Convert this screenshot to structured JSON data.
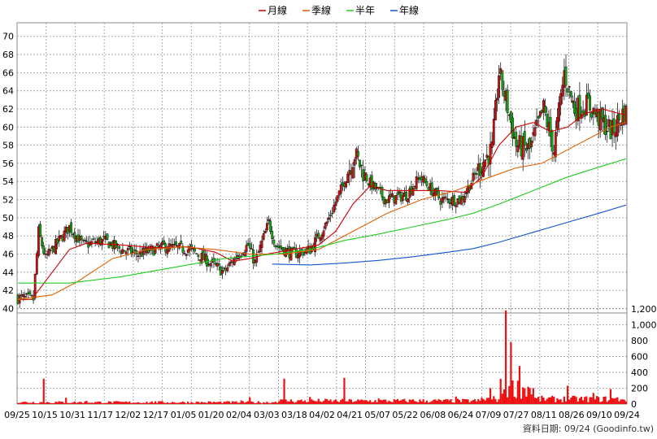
{
  "legend": [
    {
      "name": "月線",
      "color": "#cc0000"
    },
    {
      "name": "季線",
      "color": "#e06000"
    },
    {
      "name": "半年",
      "color": "#22cc22"
    },
    {
      "name": "年線",
      "color": "#1155cc"
    }
  ],
  "footer": "資料日期: 09/24  (Goodinfo.tw)",
  "chart_data": {
    "type": "candlestick",
    "price_axis": {
      "ylim": [
        39.5,
        71.5
      ],
      "ticks": [
        40,
        42,
        44,
        46,
        48,
        50,
        52,
        54,
        56,
        58,
        60,
        62,
        64,
        66,
        68,
        70
      ]
    },
    "volume_axis": {
      "ylim": [
        0,
        1250
      ],
      "ticks": [
        0,
        200,
        400,
        600,
        800,
        1000,
        1200
      ],
      "tick_labels": [
        "0",
        "200",
        "400",
        "600",
        "800",
        "1,000",
        "1,200"
      ]
    },
    "x_labels": [
      "09/25",
      "10/15",
      "10/31",
      "11/17",
      "12/02",
      "12/17",
      "01/05",
      "01/20",
      "02/04",
      "03/03",
      "03/18",
      "04/02",
      "04/21",
      "05/07",
      "05/22",
      "06/08",
      "06/24",
      "07/09",
      "07/27",
      "08/11",
      "08/26",
      "09/10",
      "09/24"
    ],
    "ohlc_anchors": [
      [
        0,
        41.2
      ],
      [
        9,
        41.0
      ],
      [
        12,
        48.5
      ],
      [
        16,
        45.5
      ],
      [
        24,
        47.5
      ],
      [
        30,
        49.0
      ],
      [
        38,
        47.0
      ],
      [
        50,
        47.5
      ],
      [
        60,
        46.5
      ],
      [
        70,
        46.0
      ],
      [
        85,
        46.8
      ],
      [
        100,
        46.5
      ],
      [
        112,
        45.0
      ],
      [
        120,
        44.0
      ],
      [
        128,
        46.0
      ],
      [
        134,
        47.0
      ],
      [
        138,
        45.0
      ],
      [
        146,
        49.5
      ],
      [
        150,
        47.0
      ],
      [
        160,
        46.0
      ],
      [
        170,
        46.5
      ],
      [
        180,
        49.5
      ],
      [
        190,
        54.0
      ],
      [
        196,
        57.0
      ],
      [
        204,
        54.0
      ],
      [
        214,
        52.0
      ],
      [
        226,
        52.5
      ],
      [
        234,
        54.5
      ],
      [
        246,
        52.0
      ],
      [
        258,
        52.0
      ],
      [
        270,
        56.0
      ],
      [
        276,
        57.5
      ],
      [
        280,
        66.0
      ],
      [
        284,
        63.0
      ],
      [
        290,
        58.0
      ],
      [
        298,
        57.5
      ],
      [
        306,
        62.0
      ],
      [
        312,
        57.5
      ],
      [
        318,
        66.0
      ],
      [
        324,
        62.0
      ],
      [
        332,
        62.5
      ],
      [
        340,
        60.5
      ],
      [
        346,
        59.5
      ],
      [
        352,
        61.5
      ]
    ],
    "moving_averages": [
      {
        "name": "月線",
        "points": [
          [
            0,
            41.0
          ],
          [
            8,
            41.0
          ],
          [
            20,
            44.0
          ],
          [
            30,
            46.5
          ],
          [
            40,
            47.2
          ],
          [
            60,
            47.0
          ],
          [
            80,
            46.7
          ],
          [
            100,
            46.8
          ],
          [
            115,
            46.2
          ],
          [
            125,
            45.2
          ],
          [
            135,
            45.5
          ],
          [
            145,
            46.0
          ],
          [
            160,
            46.5
          ],
          [
            175,
            47.0
          ],
          [
            185,
            48.5
          ],
          [
            195,
            51.5
          ],
          [
            205,
            53.5
          ],
          [
            215,
            53.0
          ],
          [
            230,
            53.0
          ],
          [
            245,
            53.0
          ],
          [
            260,
            52.8
          ],
          [
            270,
            54.5
          ],
          [
            280,
            58.0
          ],
          [
            290,
            60.0
          ],
          [
            300,
            60.5
          ],
          [
            310,
            59.5
          ],
          [
            320,
            60.0
          ],
          [
            330,
            61.5
          ],
          [
            340,
            62.0
          ],
          [
            350,
            61.5
          ],
          [
            354,
            61.3
          ]
        ]
      },
      {
        "name": "季線",
        "points": [
          [
            0,
            41.0
          ],
          [
            20,
            41.5
          ],
          [
            35,
            43.0
          ],
          [
            55,
            45.5
          ],
          [
            75,
            46.5
          ],
          [
            95,
            46.8
          ],
          [
            115,
            46.5
          ],
          [
            135,
            46.0
          ],
          [
            155,
            46.0
          ],
          [
            175,
            46.5
          ],
          [
            195,
            48.5
          ],
          [
            215,
            50.5
          ],
          [
            235,
            52.0
          ],
          [
            255,
            53.0
          ],
          [
            275,
            54.5
          ],
          [
            290,
            55.5
          ],
          [
            305,
            56.0
          ],
          [
            320,
            57.5
          ],
          [
            335,
            59.0
          ],
          [
            345,
            60.0
          ],
          [
            354,
            60.5
          ]
        ]
      },
      {
        "name": "半年",
        "points": [
          [
            0,
            42.8
          ],
          [
            30,
            42.8
          ],
          [
            60,
            43.5
          ],
          [
            90,
            44.5
          ],
          [
            120,
            45.5
          ],
          [
            150,
            46.0
          ],
          [
            170,
            46.5
          ],
          [
            190,
            47.5
          ],
          [
            210,
            48.2
          ],
          [
            230,
            49.0
          ],
          [
            250,
            49.8
          ],
          [
            265,
            50.5
          ],
          [
            280,
            51.5
          ],
          [
            300,
            53.0
          ],
          [
            320,
            54.5
          ],
          [
            340,
            55.7
          ],
          [
            354,
            56.5
          ]
        ]
      },
      {
        "name": "年線",
        "points": [
          [
            148,
            44.9
          ],
          [
            170,
            44.8
          ],
          [
            190,
            45.0
          ],
          [
            210,
            45.3
          ],
          [
            230,
            45.7
          ],
          [
            250,
            46.2
          ],
          [
            265,
            46.6
          ],
          [
            280,
            47.3
          ],
          [
            300,
            48.4
          ],
          [
            320,
            49.5
          ],
          [
            340,
            50.6
          ],
          [
            354,
            51.4
          ]
        ]
      }
    ],
    "volume_spikes": [
      [
        15,
        320
      ],
      [
        28,
        80
      ],
      [
        40,
        40
      ],
      [
        80,
        35
      ],
      [
        108,
        20
      ],
      [
        120,
        30
      ],
      [
        130,
        45
      ],
      [
        135,
        85
      ],
      [
        155,
        320
      ],
      [
        170,
        90
      ],
      [
        190,
        330
      ],
      [
        210,
        70
      ],
      [
        230,
        60
      ],
      [
        255,
        95
      ],
      [
        275,
        200
      ],
      [
        284,
        1180
      ],
      [
        287,
        780
      ],
      [
        292,
        480
      ],
      [
        300,
        200
      ],
      [
        320,
        230
      ],
      [
        335,
        140
      ],
      [
        345,
        190
      ],
      [
        352,
        60
      ]
    ]
  }
}
